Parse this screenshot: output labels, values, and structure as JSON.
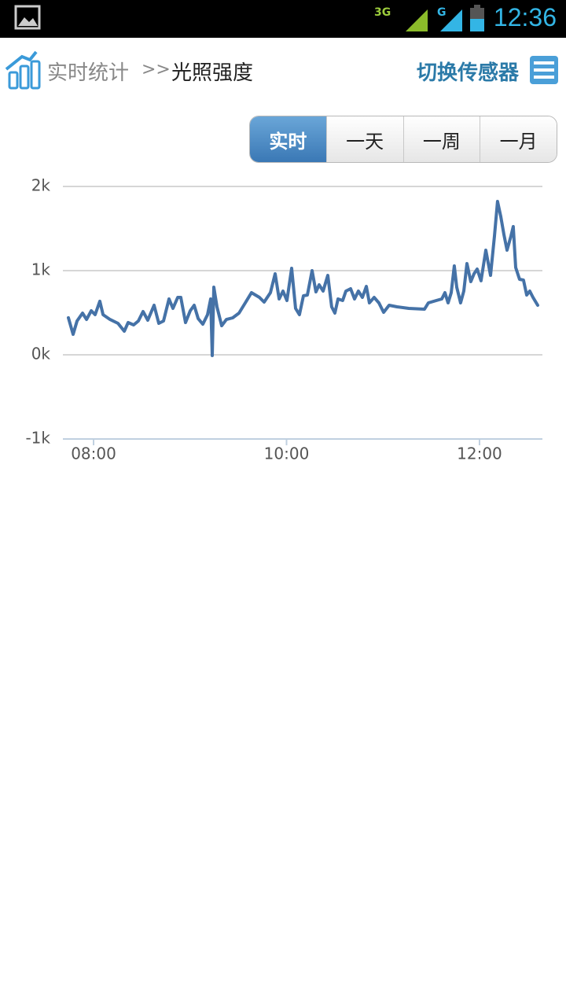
{
  "status_bar": {
    "network": "3G",
    "network2": "G",
    "time": "12:36"
  },
  "header": {
    "breadcrumb": "实时统计",
    "separator": ">>",
    "current": "光照强度",
    "action": "切换传感器"
  },
  "tabs": {
    "items": [
      "实时",
      "一天",
      "一周",
      "一月"
    ],
    "active": 0
  },
  "chart_data": {
    "type": "line",
    "color": "#4572a7",
    "grid": true,
    "xlim": [
      7.682,
      12.652
    ],
    "xticks": [
      {
        "value": 8,
        "label": "08:00"
      },
      {
        "value": 10,
        "label": "10:00"
      },
      {
        "value": 12,
        "label": "12:00"
      }
    ],
    "ylim": [
      -1000,
      2000
    ],
    "yticks": [
      {
        "value": -1000,
        "label": "-1k"
      },
      {
        "value": 0,
        "label": "0k"
      },
      {
        "value": 1000,
        "label": "1k"
      },
      {
        "value": 2000,
        "label": "2k"
      }
    ],
    "x": [
      7.739,
      7.788,
      7.829,
      7.886,
      7.927,
      7.976,
      8.016,
      8.065,
      8.098,
      8.171,
      8.253,
      8.318,
      8.358,
      8.415,
      8.464,
      8.513,
      8.562,
      8.627,
      8.676,
      8.725,
      8.782,
      8.823,
      8.872,
      8.904,
      8.953,
      9.002,
      9.043,
      9.084,
      9.132,
      9.181,
      9.214,
      9.23,
      9.246,
      9.279,
      9.328,
      9.377,
      9.442,
      9.507,
      9.572,
      9.637,
      9.719,
      9.768,
      9.833,
      9.882,
      9.923,
      9.963,
      10.004,
      10.053,
      10.094,
      10.134,
      10.175,
      10.216,
      10.265,
      10.305,
      10.338,
      10.379,
      10.428,
      10.468,
      10.501,
      10.534,
      10.582,
      10.615,
      10.664,
      10.705,
      10.745,
      10.786,
      10.827,
      10.859,
      10.908,
      10.957,
      11.006,
      11.063,
      11.145,
      11.267,
      11.43,
      11.47,
      11.552,
      11.609,
      11.642,
      11.674,
      11.707,
      11.739,
      11.764,
      11.804,
      11.837,
      11.87,
      11.91,
      11.943,
      11.976,
      12.016,
      12.065,
      12.114,
      12.155,
      12.187,
      12.22,
      12.253,
      12.285,
      12.326,
      12.35,
      12.375,
      12.415,
      12.456,
      12.489,
      12.521,
      12.554,
      12.603
    ],
    "values": [
      440,
      243,
      402,
      495,
      420,
      523,
      477,
      636,
      477,
      420,
      374,
      280,
      383,
      355,
      402,
      514,
      411,
      589,
      374,
      402,
      664,
      551,
      682,
      682,
      383,
      523,
      589,
      430,
      364,
      477,
      664,
      -9,
      804,
      570,
      346,
      420,
      439,
      495,
      617,
      738,
      682,
      626,
      738,
      963,
      664,
      757,
      645,
      1028,
      551,
      477,
      701,
      710,
      1000,
      748,
      832,
      757,
      944,
      570,
      495,
      664,
      645,
      757,
      785,
      664,
      757,
      682,
      813,
      617,
      682,
      617,
      505,
      589,
      570,
      551,
      542,
      617,
      645,
      664,
      738,
      617,
      738,
      1056,
      804,
      617,
      757,
      1084,
      869,
      963,
      1019,
      879,
      1243,
      944,
      1411,
      1822,
      1645,
      1430,
      1243,
      1411,
      1523,
      1037,
      897,
      888,
      710,
      757,
      682,
      589
    ]
  }
}
